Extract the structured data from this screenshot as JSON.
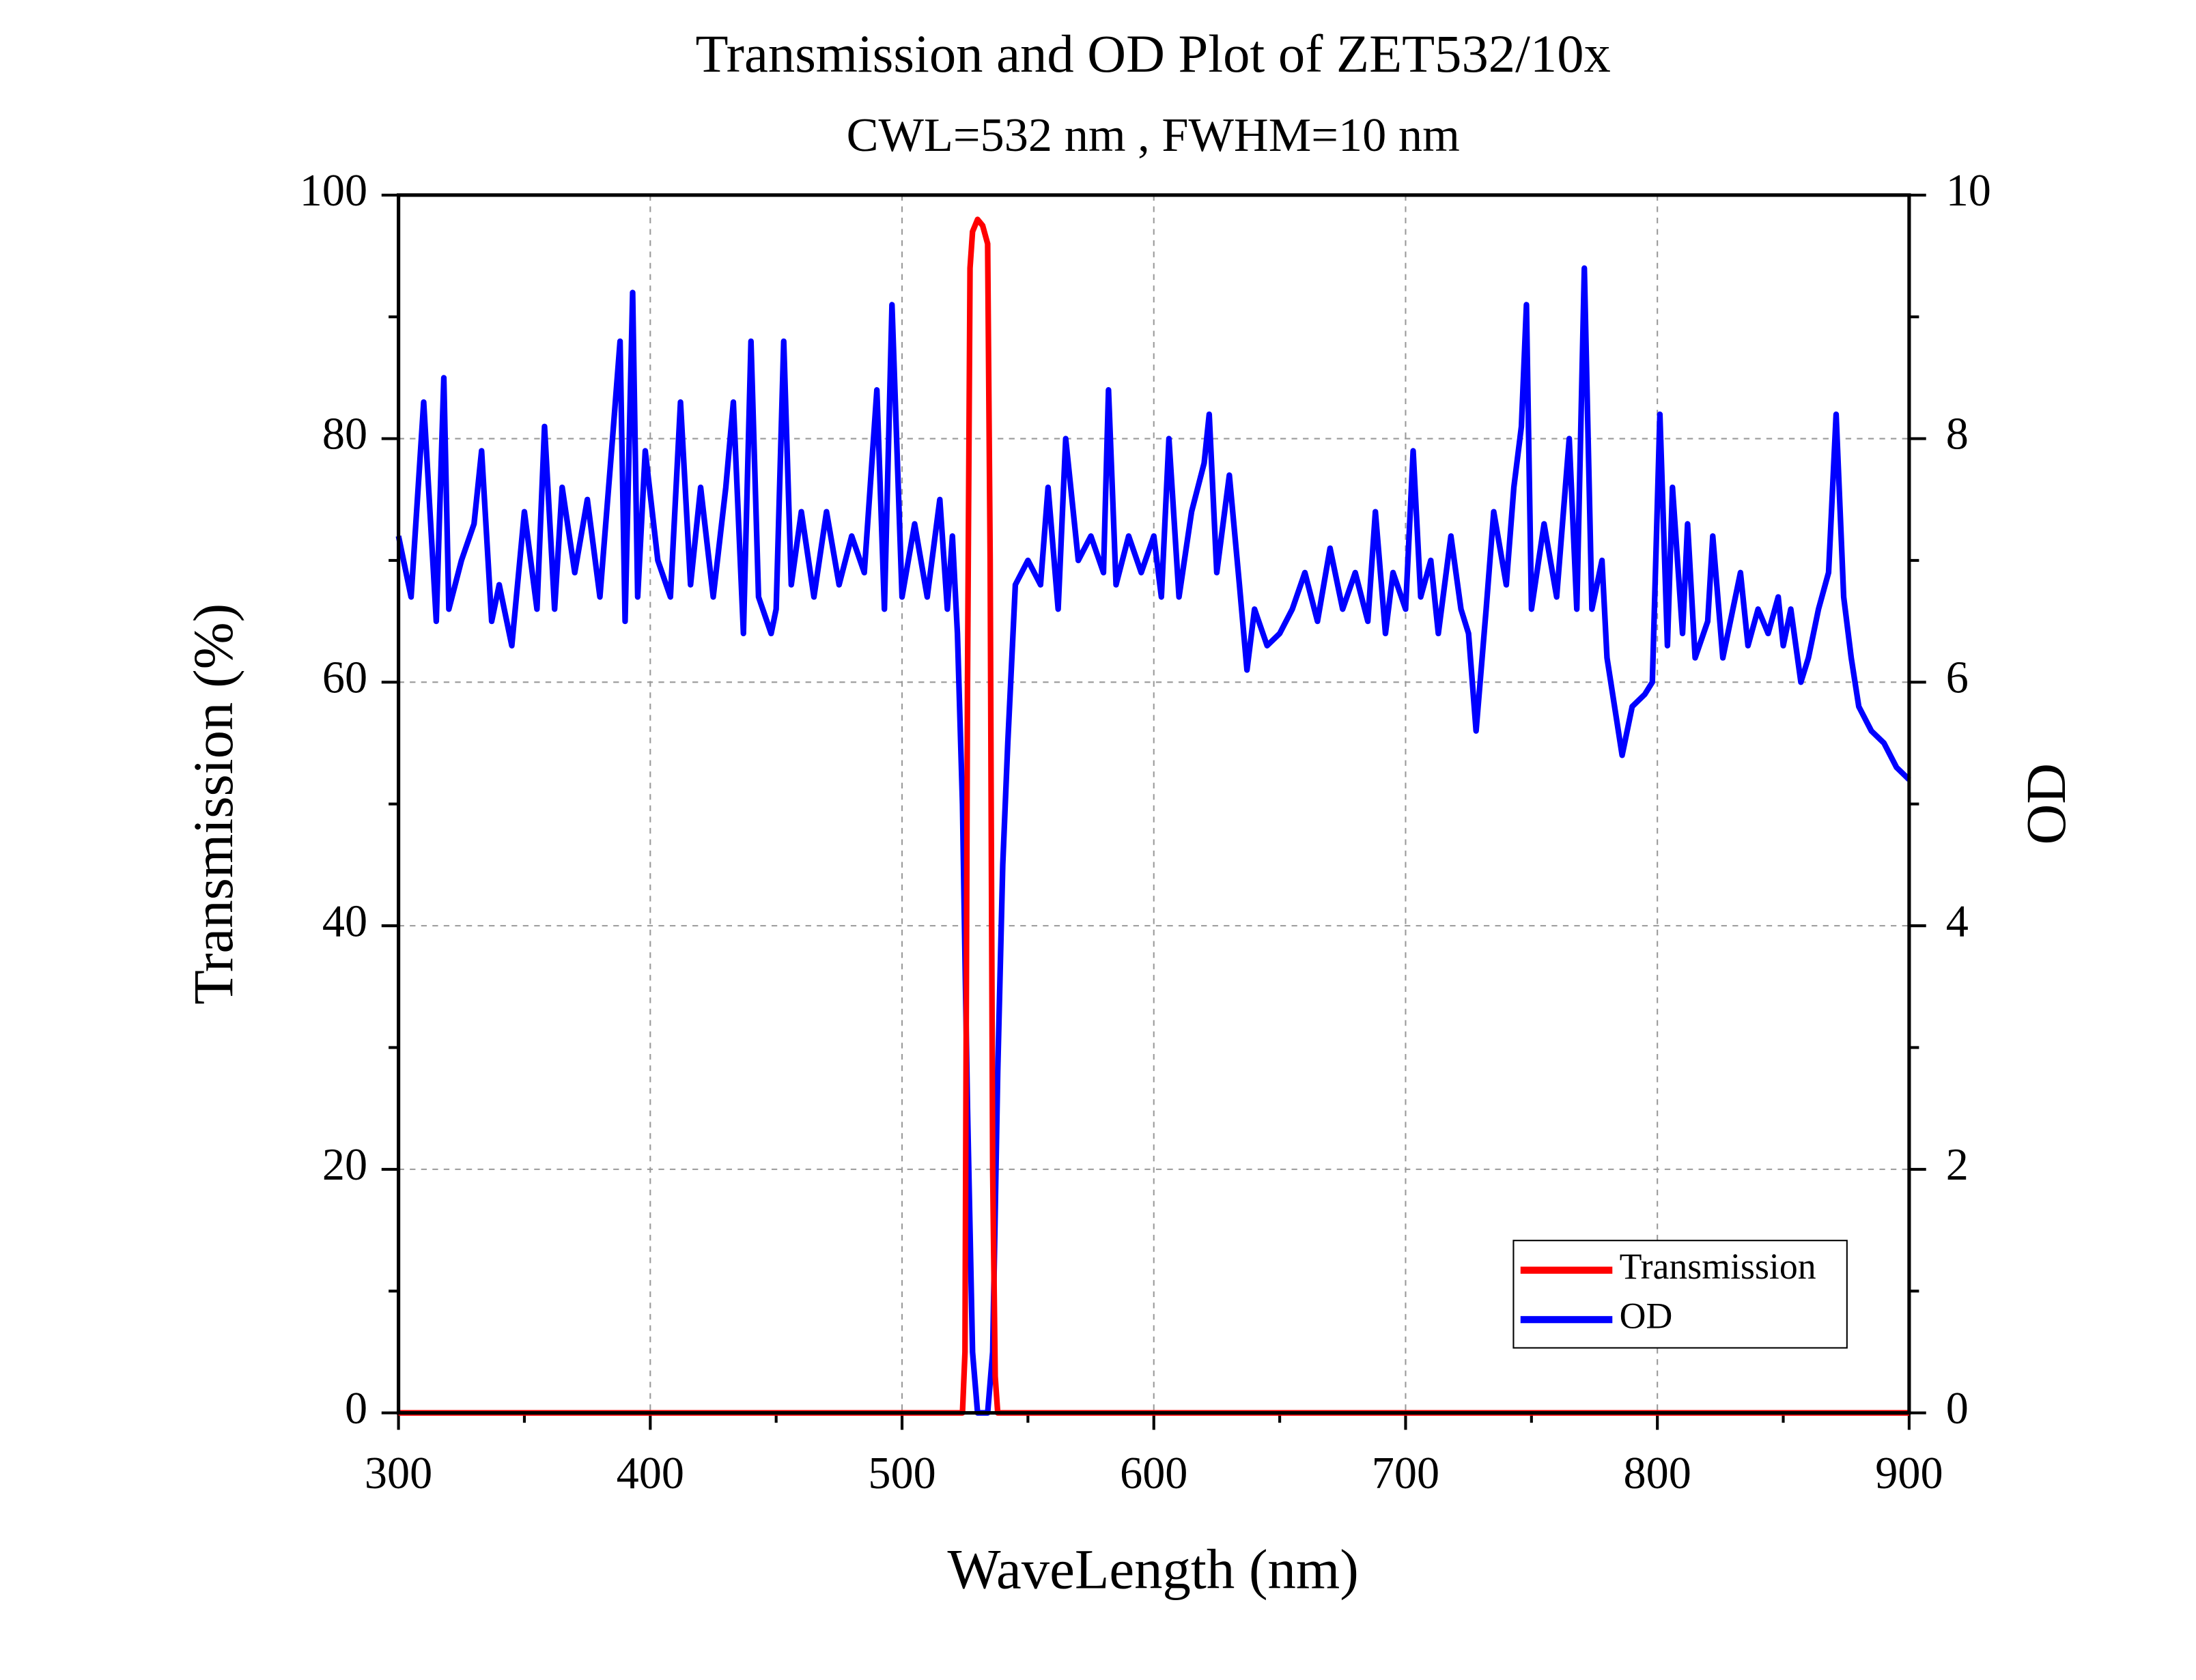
{
  "chart_data": {
    "type": "line",
    "title": "Transmission and OD Plot of ZET532/10x",
    "subtitle": "CWL=532 nm , FWHM=10 nm",
    "xlabel": "WaveLength (nm)",
    "ylabel": "Transmission (%)",
    "y2label": "OD",
    "xlim": [
      300,
      900
    ],
    "xticks": [
      300,
      400,
      500,
      600,
      700,
      800,
      900
    ],
    "ylim": [
      0,
      100
    ],
    "yticks": [
      0,
      20,
      40,
      60,
      80,
      100
    ],
    "y2lim": [
      0,
      10
    ],
    "y2ticks": [
      0,
      2,
      4,
      6,
      8,
      10
    ],
    "grid": true,
    "legend": "lower right",
    "series": [
      {
        "name": "Transmission",
        "color": "#ff0000",
        "x": [
          300,
          520,
          524,
          525,
          526,
          527,
          528,
          530,
          532,
          534,
          535,
          536,
          537,
          538,
          540,
          900
        ],
        "values": [
          0,
          0,
          0,
          5,
          60,
          94,
          97,
          98,
          97.5,
          96,
          70,
          20,
          3,
          0,
          0,
          0
        ]
      },
      {
        "name": "OD",
        "color": "#0000ff",
        "axis": "y2",
        "x": [
          300,
          305,
          310,
          315,
          318,
          320,
          325,
          330,
          333,
          337,
          340,
          345,
          350,
          355,
          358,
          362,
          365,
          370,
          375,
          380,
          385,
          388,
          390,
          393,
          395,
          398,
          403,
          408,
          412,
          416,
          420,
          425,
          430,
          433,
          437,
          440,
          443,
          448,
          450,
          453,
          456,
          460,
          465,
          470,
          475,
          480,
          485,
          490,
          493,
          496,
          500,
          505,
          510,
          515,
          518,
          520,
          522,
          524,
          526,
          528,
          530,
          534,
          536,
          538,
          540,
          542,
          545,
          550,
          555,
          558,
          562,
          565,
          570,
          575,
          580,
          582,
          585,
          590,
          595,
          600,
          603,
          606,
          610,
          615,
          620,
          622,
          625,
          630,
          634,
          637,
          640,
          645,
          650,
          655,
          660,
          665,
          670,
          675,
          680,
          685,
          688,
          692,
          695,
          700,
          703,
          706,
          710,
          713,
          718,
          722,
          725,
          728,
          732,
          735,
          740,
          743,
          746,
          748,
          750,
          755,
          760,
          765,
          768,
          771,
          774,
          778,
          780,
          783,
          786,
          790,
          795,
          798,
          801,
          804,
          806,
          810,
          812,
          815,
          820,
          822,
          826,
          830,
          833,
          836,
          840,
          844,
          848,
          850,
          853,
          857,
          860,
          864,
          868,
          871,
          874,
          877,
          880,
          885,
          890,
          895,
          900
        ],
        "values": [
          7.2,
          6.7,
          8.3,
          6.5,
          8.5,
          6.6,
          7.0,
          7.3,
          7.9,
          6.5,
          6.8,
          6.3,
          7.4,
          6.6,
          8.1,
          6.6,
          7.6,
          6.9,
          7.5,
          6.7,
          8.0,
          8.8,
          6.5,
          9.2,
          6.7,
          7.9,
          7.0,
          6.7,
          8.3,
          6.8,
          7.6,
          6.7,
          7.6,
          8.3,
          6.4,
          8.8,
          6.7,
          6.4,
          6.6,
          8.8,
          6.8,
          7.4,
          6.7,
          7.4,
          6.8,
          7.2,
          6.9,
          8.4,
          6.6,
          9.1,
          6.7,
          7.3,
          6.7,
          7.5,
          6.6,
          7.2,
          6.4,
          5.0,
          2.5,
          0.5,
          0,
          0,
          0.5,
          2.8,
          4.5,
          5.5,
          6.8,
          7.0,
          6.8,
          7.6,
          6.6,
          8.0,
          7.0,
          7.2,
          6.9,
          8.4,
          6.8,
          7.2,
          6.9,
          7.2,
          6.7,
          8.0,
          6.7,
          7.4,
          7.8,
          8.2,
          6.9,
          7.7,
          6.8,
          6.1,
          6.6,
          6.3,
          6.4,
          6.6,
          6.9,
          6.5,
          7.1,
          6.6,
          6.9,
          6.5,
          7.4,
          6.4,
          6.9,
          6.6,
          7.9,
          6.7,
          7.0,
          6.4,
          7.2,
          6.6,
          6.4,
          5.6,
          6.6,
          7.4,
          6.8,
          7.6,
          8.1,
          9.1,
          6.6,
          7.3,
          6.7,
          8.0,
          6.6,
          9.4,
          6.6,
          7.0,
          6.2,
          5.8,
          5.4,
          5.8,
          5.9,
          6.0,
          8.2,
          6.3,
          7.6,
          6.4,
          7.3,
          6.2,
          6.5,
          7.2,
          6.2,
          6.6,
          6.9,
          6.3,
          6.6,
          6.4,
          6.7,
          6.3,
          6.6,
          6.0,
          6.2,
          6.6,
          6.9,
          8.2,
          6.7,
          6.2,
          5.8,
          5.6,
          5.5,
          5.3,
          5.2
        ]
      }
    ]
  }
}
